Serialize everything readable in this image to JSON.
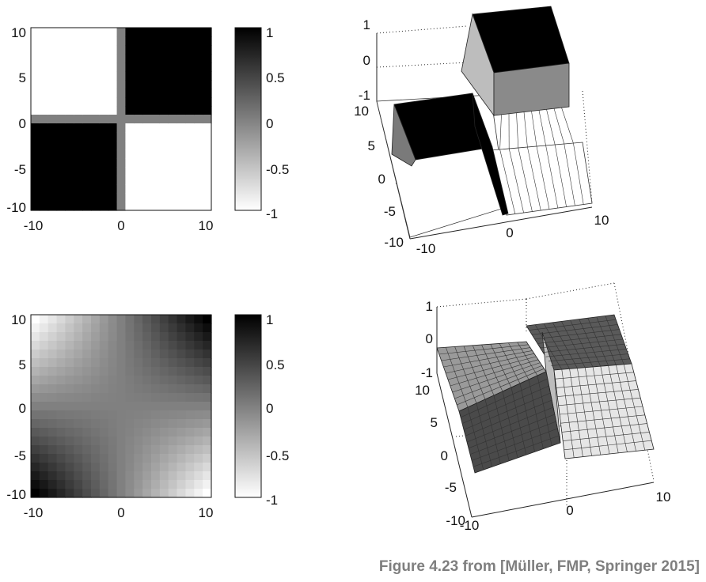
{
  "caption": "Figure 4.23 from [Müller, FMP, Springer 2015]",
  "colors": {
    "ink": "#111111",
    "caption": "#7f7f7f",
    "mesh_line": "#333333"
  },
  "chart_data": [
    {
      "id": "sign-image",
      "type": "heatmap",
      "description_function": "sign(x*y) with zero along axes",
      "x_range": [
        -10,
        10
      ],
      "y_range": [
        -10,
        10
      ],
      "grid_n": 21,
      "colormap": "gray (1 = black, -1 = white)",
      "xticks": [
        "-10",
        "0",
        "10"
      ],
      "yticks": [
        "10",
        "5",
        "0",
        "-5",
        "-10"
      ],
      "clim": [
        -1,
        1
      ],
      "colorbar_ticks": [
        "1",
        "0.5",
        "0",
        "-0.5",
        "-1"
      ],
      "quadrant_values": {
        "top_left": -1,
        "top_right": 1,
        "bottom_left": 1,
        "bottom_right": -1,
        "axes": 0
      }
    },
    {
      "id": "sign-surface",
      "type": "surface",
      "x_range": [
        -10,
        10
      ],
      "y_range": [
        -10,
        10
      ],
      "zlim": [
        -1,
        1
      ],
      "zticks": [
        "1",
        "0",
        "-1"
      ],
      "yticks": [
        "10",
        "5",
        "0",
        "-5",
        "-10"
      ],
      "xticks": [
        "-10",
        "0",
        "10"
      ]
    },
    {
      "id": "smooth-image",
      "type": "heatmap",
      "description_function": "normalized x*y",
      "x_range": [
        -10,
        10
      ],
      "y_range": [
        -10,
        10
      ],
      "grid_n": 21,
      "colormap": "gray (1 = black, -1 = white)",
      "xticks": [
        "-10",
        "0",
        "10"
      ],
      "yticks": [
        "10",
        "5",
        "0",
        "-5",
        "-10"
      ],
      "clim": [
        -1,
        1
      ],
      "colorbar_ticks": [
        "1",
        "0.5",
        "0",
        "-0.5",
        "-1"
      ]
    },
    {
      "id": "smooth-surface",
      "type": "surface",
      "x_range": [
        -10,
        10
      ],
      "y_range": [
        -10,
        10
      ],
      "zlim": [
        -1,
        1
      ],
      "zticks": [
        "1",
        "0",
        "-1"
      ],
      "yticks": [
        "10",
        "5",
        "0",
        "-5",
        "-10"
      ],
      "xticks": [
        "-10",
        "0",
        "10"
      ]
    }
  ]
}
